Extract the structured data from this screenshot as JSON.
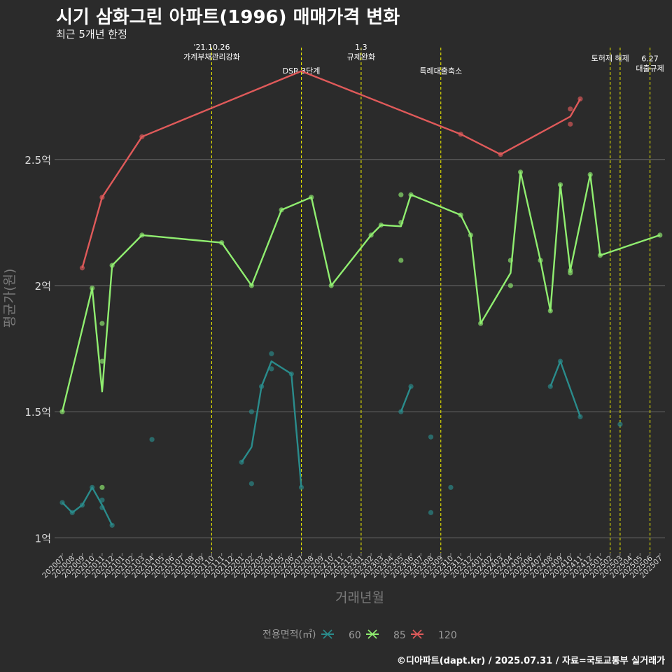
{
  "page": {
    "title": "시기 삼화그린 아파트(1996) 매매가격 변화",
    "subtitle": "최근 5개년 한정",
    "footer": "©디아파트(dapt.kr) / 2025.07.31 / 자료=국토교통부 실거래가"
  },
  "chart_data": {
    "type": "line",
    "title": "시기 삼화그린 아파트(1996) 매매가격 변화",
    "subtitle": "최근 5개년 한정",
    "xlabel": "거래년월",
    "ylabel": "평균가(원)",
    "ylim": [
      0.94,
      2.96
    ],
    "y_ticks": [
      {
        "value": 1.0,
        "label": "1억"
      },
      {
        "value": 1.5,
        "label": "1.5억"
      },
      {
        "value": 2.0,
        "label": "2억"
      },
      {
        "value": 2.5,
        "label": "2.5억"
      }
    ],
    "categories": [
      "202007",
      "202008",
      "202009",
      "202010",
      "202011",
      "202012",
      "202101",
      "202102",
      "202103",
      "202104",
      "202105",
      "202106",
      "202107",
      "202108",
      "202109",
      "202110",
      "202111",
      "202112",
      "202201",
      "202202",
      "202203",
      "202204",
      "202205",
      "202206",
      "202207",
      "202208",
      "202209",
      "202210",
      "202211",
      "202212",
      "202301",
      "202302",
      "202303",
      "202304",
      "202305",
      "202306",
      "202307",
      "202308",
      "202309",
      "202310",
      "202311",
      "202312",
      "202401",
      "202402",
      "202403",
      "202404",
      "202405",
      "202406",
      "202407",
      "202408",
      "202409",
      "202410",
      "202411",
      "202412",
      "202501",
      "202502",
      "202503",
      "202504",
      "202505",
      "202506",
      "202507"
    ],
    "grid": true,
    "legend": {
      "title": "전용면적(㎡)",
      "position": "bottom"
    },
    "events": [
      {
        "month": "202110",
        "label": "'21.10.26\n가계부채관리강화",
        "label_y": 2.915
      },
      {
        "month": "202207",
        "label": "DSR 3단계",
        "label_y": 2.84
      },
      {
        "month": "202301",
        "label": "1.3\n규제완화",
        "label_y": 2.915
      },
      {
        "month": "202309",
        "label": "특례대출축소",
        "label_y": 2.84
      },
      {
        "month": "202502",
        "label": "토허제 해제",
        "label_y": 2.89
      },
      {
        "month": "202503",
        "label": "",
        "label_y": 2.89
      },
      {
        "month": "202506",
        "label": "6.27\n대출규제",
        "label_y": 2.87
      }
    ],
    "series": [
      {
        "name": "60",
        "color": "#2a8c8c",
        "line": [
          [
            0,
            1.14
          ],
          [
            1,
            1.1
          ],
          [
            2,
            1.13
          ],
          [
            3,
            1.2
          ],
          [
            4,
            1.13
          ],
          [
            5,
            1.05
          ],
          null,
          [
            18,
            1.3
          ],
          [
            19,
            1.36
          ],
          [
            20,
            1.6
          ],
          [
            21,
            1.7
          ],
          [
            23,
            1.65
          ],
          [
            24,
            1.2
          ],
          null,
          [
            34,
            1.5
          ],
          [
            35,
            1.6
          ],
          null,
          [
            49,
            1.6
          ],
          [
            50,
            1.7
          ],
          [
            52,
            1.48
          ]
        ],
        "points": [
          [
            0,
            1.14
          ],
          [
            1,
            1.1
          ],
          [
            2,
            1.13
          ],
          [
            3,
            1.2
          ],
          [
            4,
            1.15
          ],
          [
            4,
            1.12
          ],
          [
            5,
            1.05
          ],
          [
            9,
            1.39
          ],
          [
            18,
            1.3
          ],
          [
            19,
            1.5
          ],
          [
            19,
            1.215
          ],
          [
            20,
            1.6
          ],
          [
            21,
            1.73
          ],
          [
            21,
            1.67
          ],
          [
            23,
            1.65
          ],
          [
            24,
            1.2
          ],
          [
            34,
            1.5
          ],
          [
            35,
            1.6
          ],
          [
            37,
            1.4
          ],
          [
            37,
            1.1
          ],
          [
            39,
            1.2
          ],
          [
            49,
            1.6
          ],
          [
            50,
            1.7
          ],
          [
            52,
            1.48
          ],
          [
            56,
            1.45
          ]
        ]
      },
      {
        "name": "85",
        "color": "#90ee70",
        "line": [
          [
            0,
            1.5
          ],
          [
            3,
            1.99
          ],
          [
            4,
            1.58
          ],
          [
            5,
            2.08
          ],
          [
            8,
            2.2
          ],
          [
            16,
            2.17
          ],
          [
            19,
            2.0
          ],
          [
            22,
            2.3
          ],
          [
            25,
            2.35
          ],
          [
            27,
            2.0
          ],
          [
            31,
            2.2
          ],
          [
            32,
            2.24
          ],
          [
            34,
            2.235
          ],
          [
            35,
            2.36
          ],
          [
            40,
            2.28
          ],
          [
            41,
            2.2
          ],
          [
            42,
            1.85
          ],
          [
            45,
            2.05
          ],
          [
            46,
            2.45
          ],
          [
            48,
            2.1
          ],
          [
            49,
            1.9
          ],
          [
            50,
            2.4
          ],
          [
            51,
            2.06
          ],
          [
            53,
            2.44
          ],
          [
            54,
            2.12
          ],
          [
            60,
            2.2
          ]
        ],
        "points": [
          [
            0,
            1.5
          ],
          [
            3,
            1.99
          ],
          [
            4,
            1.85
          ],
          [
            4,
            1.7
          ],
          [
            4,
            1.2
          ],
          [
            5,
            2.08
          ],
          [
            8,
            2.2
          ],
          [
            16,
            2.17
          ],
          [
            19,
            2.0
          ],
          [
            22,
            2.3
          ],
          [
            25,
            2.35
          ],
          [
            27,
            2.0
          ],
          [
            31,
            2.2
          ],
          [
            32,
            2.24
          ],
          [
            34,
            2.36
          ],
          [
            34,
            2.25
          ],
          [
            34,
            2.1
          ],
          [
            35,
            2.36
          ],
          [
            40,
            2.28
          ],
          [
            41,
            2.2
          ],
          [
            42,
            1.85
          ],
          [
            45,
            2.1
          ],
          [
            45,
            2.0
          ],
          [
            46,
            2.45
          ],
          [
            48,
            2.1
          ],
          [
            49,
            1.9
          ],
          [
            50,
            2.4
          ],
          [
            51,
            2.05
          ],
          [
            51,
            2.06
          ],
          [
            53,
            2.44
          ],
          [
            54,
            2.12
          ],
          [
            60,
            2.2
          ]
        ]
      },
      {
        "name": "120",
        "color": "#e05a5a",
        "line": [
          [
            2,
            2.07
          ],
          [
            4,
            2.35
          ],
          [
            8,
            2.59
          ],
          [
            24,
            2.85
          ],
          [
            40,
            2.6
          ],
          [
            44,
            2.52
          ],
          [
            51,
            2.67
          ],
          [
            52,
            2.74
          ]
        ],
        "points": [
          [
            2,
            2.07
          ],
          [
            4,
            2.35
          ],
          [
            8,
            2.59
          ],
          [
            40,
            2.6
          ],
          [
            44,
            2.52
          ],
          [
            51,
            2.7
          ],
          [
            51,
            2.64
          ],
          [
            52,
            2.74
          ]
        ]
      }
    ]
  }
}
